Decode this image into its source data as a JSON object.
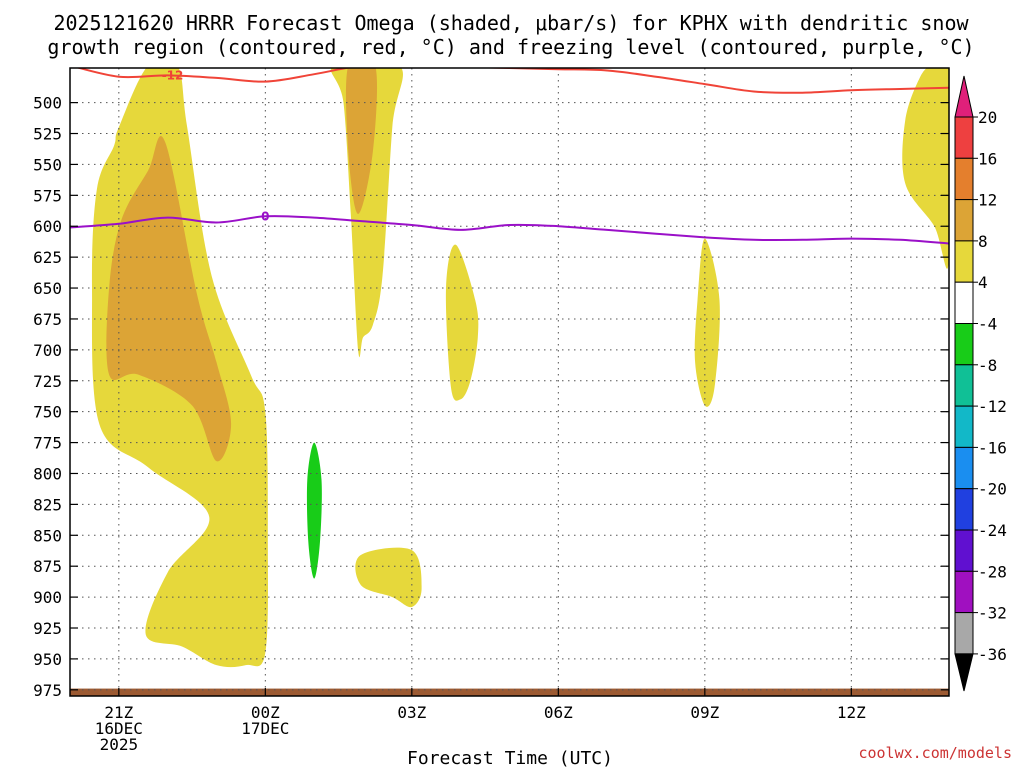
{
  "title_line1": "2025121620 HRRR Forecast Omega (shaded, μbar/s) for KPHX with dendritic snow",
  "title_line2": "growth region (contoured, red, °C) and freezing level (contoured, purple, °C)",
  "credit": "coolwx.com/models",
  "chart_data": {
    "type": "area",
    "title": "2025121620 HRRR Forecast Omega (shaded, μbar/s) for KPHX with dendritic snow growth region (contoured, red, °C) and freezing level (contoured, purple, °C)",
    "xlabel": "Forecast Time (UTC)",
    "ylabel": "",
    "x_unit": "hours_since_2025121620",
    "xlim": [
      0,
      18
    ],
    "ylim": [
      980,
      472
    ],
    "y_ticks": [
      500,
      525,
      550,
      575,
      600,
      625,
      650,
      675,
      700,
      725,
      750,
      775,
      800,
      825,
      850,
      875,
      900,
      925,
      950,
      975
    ],
    "x_ticks": [
      {
        "x": 1,
        "label": [
          "21Z",
          "16DEC",
          "2025"
        ]
      },
      {
        "x": 4,
        "label": [
          "00Z",
          "17DEC"
        ]
      },
      {
        "x": 7,
        "label": [
          "03Z"
        ]
      },
      {
        "x": 10,
        "label": [
          "06Z"
        ]
      },
      {
        "x": 13,
        "label": [
          "09Z"
        ]
      },
      {
        "x": 16,
        "label": [
          "12Z"
        ]
      }
    ],
    "grid": true,
    "colorbar": {
      "labels": [
        "20",
        "16",
        "12",
        "8",
        "4",
        "-4",
        "-8",
        "-12",
        "-16",
        "-20",
        "-24",
        "-28",
        "-32",
        "-36"
      ],
      "colors": [
        "#ee4040",
        "#e47f2d",
        "#dca436",
        "#e6d83b",
        "#ffffff",
        "#18cc18",
        "#10c096",
        "#12b8c8",
        "#1a8ef0",
        "#2040e0",
        "#6010d0",
        "#a010c0",
        "#a8a8a8"
      ],
      "top_color": "#e0207a",
      "bottom_color": "#000000"
    },
    "contours": [
      {
        "name": "-12",
        "color": "#f04438",
        "label": "-12",
        "label_x": 2.1,
        "points": [
          [
            0,
            470
          ],
          [
            1,
            479
          ],
          [
            2,
            478
          ],
          [
            3,
            480
          ],
          [
            4,
            483
          ],
          [
            5,
            477
          ],
          [
            6,
            470
          ],
          [
            7,
            470
          ],
          [
            8,
            471
          ],
          [
            9,
            472
          ],
          [
            10,
            473
          ],
          [
            11,
            474
          ],
          [
            12,
            479
          ],
          [
            13,
            485
          ],
          [
            14,
            491
          ],
          [
            15,
            492
          ],
          [
            16,
            490
          ],
          [
            17,
            489
          ],
          [
            18,
            488
          ]
        ]
      },
      {
        "name": "0",
        "color": "#9a10c8",
        "label": "0",
        "label_x": 4.0,
        "points": [
          [
            0,
            601
          ],
          [
            1,
            598
          ],
          [
            2,
            593
          ],
          [
            3,
            597
          ],
          [
            4,
            592
          ],
          [
            5,
            593
          ],
          [
            6,
            596
          ],
          [
            7,
            599
          ],
          [
            8,
            603
          ],
          [
            9,
            599
          ],
          [
            10,
            600
          ],
          [
            11,
            603
          ],
          [
            12,
            606
          ],
          [
            13,
            609
          ],
          [
            14,
            611
          ],
          [
            15,
            611
          ],
          [
            16,
            610
          ],
          [
            17,
            611
          ],
          [
            18,
            614
          ]
        ]
      }
    ],
    "omega_regions": [
      {
        "value": 4,
        "color": "#e6d83b",
        "points": [
          [
            1.6,
            470
          ],
          [
            2.2,
            470
          ],
          [
            2.4,
            520
          ],
          [
            2.9,
            640
          ],
          [
            3.7,
            720
          ],
          [
            4.0,
            750
          ],
          [
            4.05,
            850
          ],
          [
            4.0,
            945
          ],
          [
            3.6,
            955
          ],
          [
            3.0,
            955
          ],
          [
            2.3,
            940
          ],
          [
            1.55,
            930
          ],
          [
            2.0,
            880
          ],
          [
            2.85,
            835
          ],
          [
            1.6,
            795
          ],
          [
            0.6,
            760
          ],
          [
            0.45,
            650
          ],
          [
            0.55,
            570
          ],
          [
            0.9,
            535
          ],
          [
            1.0,
            520
          ]
        ]
      },
      {
        "value": 8,
        "color": "#dca436",
        "points": [
          [
            1.95,
            532
          ],
          [
            2.6,
            655
          ],
          [
            3.0,
            710
          ],
          [
            3.3,
            760
          ],
          [
            3.0,
            790
          ],
          [
            2.5,
            745
          ],
          [
            1.4,
            720
          ],
          [
            0.8,
            720
          ],
          [
            0.8,
            650
          ],
          [
            1.05,
            595
          ],
          [
            1.6,
            555
          ]
        ]
      },
      {
        "value": 4,
        "color": "#e6d83b",
        "points": [
          [
            5.4,
            470
          ],
          [
            6.75,
            470
          ],
          [
            6.6,
            520
          ],
          [
            6.4,
            640
          ],
          [
            6.2,
            680
          ],
          [
            6.0,
            690
          ],
          [
            5.9,
            700
          ],
          [
            5.75,
            590
          ],
          [
            5.6,
            500
          ]
        ]
      },
      {
        "value": 8,
        "color": "#dca436",
        "points": [
          [
            5.7,
            470
          ],
          [
            6.25,
            470
          ],
          [
            6.2,
            540
          ],
          [
            5.9,
            590
          ],
          [
            5.7,
            540
          ]
        ]
      },
      {
        "value": 4,
        "color": "#e6d83b",
        "points": [
          [
            7.9,
            615
          ],
          [
            8.3,
            660
          ],
          [
            8.35,
            690
          ],
          [
            8.2,
            725
          ],
          [
            8.0,
            740
          ],
          [
            7.8,
            730
          ],
          [
            7.7,
            650
          ]
        ]
      },
      {
        "value": 4,
        "color": "#e6d83b",
        "points": [
          [
            13.0,
            610
          ],
          [
            13.3,
            660
          ],
          [
            13.2,
            730
          ],
          [
            13.0,
            745
          ],
          [
            12.8,
            710
          ],
          [
            12.85,
            660
          ]
        ]
      },
      {
        "value": 4,
        "color": "#e6d83b",
        "points": [
          [
            5.95,
            866
          ],
          [
            7.0,
            862
          ],
          [
            7.2,
            893
          ],
          [
            7.0,
            908
          ],
          [
            6.6,
            900
          ],
          [
            5.95,
            890
          ]
        ]
      },
      {
        "value": 4,
        "color": "#e6d83b",
        "points": [
          [
            17.65,
            470
          ],
          [
            18,
            470
          ],
          [
            18,
            628
          ],
          [
            17.7,
            600
          ],
          [
            17.1,
            565
          ],
          [
            17.1,
            515
          ],
          [
            17.4,
            480
          ]
        ]
      }
    ],
    "omega_negative_regions": [
      {
        "value": -4,
        "color": "#18cc18",
        "points": [
          [
            5.0,
            775
          ],
          [
            5.15,
            805
          ],
          [
            5.12,
            855
          ],
          [
            5.0,
            885
          ],
          [
            4.88,
            855
          ],
          [
            4.86,
            805
          ]
        ]
      }
    ],
    "terrain": {
      "color": "#9c5a32",
      "top_pressure": 974
    }
  }
}
